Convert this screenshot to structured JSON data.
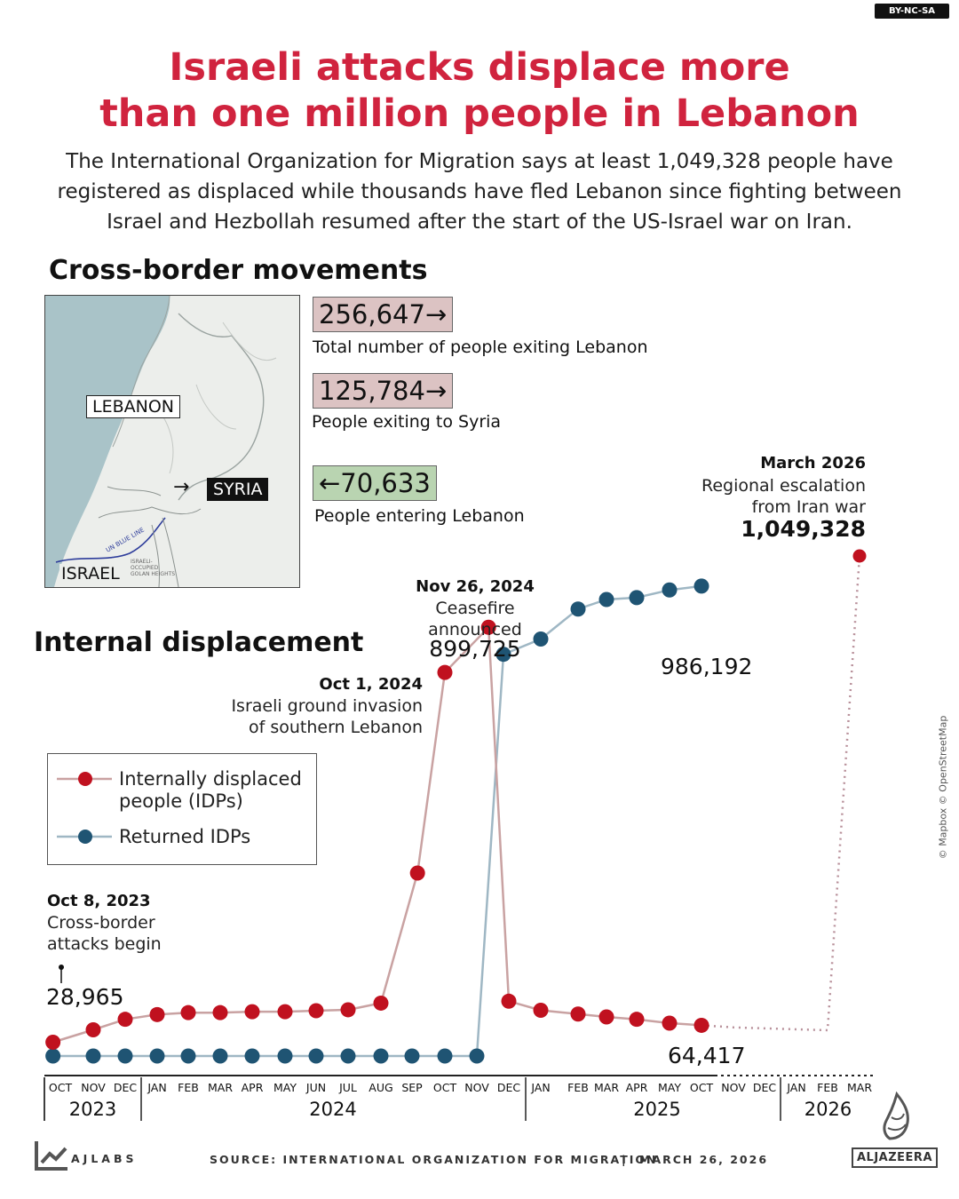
{
  "license": "BY-NC-SA",
  "title_line1": "Israeli attacks displace more",
  "title_line2": "than one million people in Lebanon",
  "subtitle_line1": "The International Organization for Migration says at least 1,049,328 people have",
  "subtitle_line2": "registered as displaced while thousands have fled Lebanon since fighting between",
  "subtitle_line3": "Israel and Hezbollah resumed after the start of the US-Israel war on Iran.",
  "cross_border": {
    "heading": "Cross-border movements",
    "map_labels": {
      "lebanon": "LEBANON",
      "syria": "SYRIA",
      "israel": "ISRAEL",
      "arrow": "→"
    },
    "stats": [
      {
        "value": "256,647→",
        "label": "Total number of people exiting Lebanon",
        "color": "#dcc3c3"
      },
      {
        "value": "125,784→",
        "label": "People exiting to Syria",
        "color": "#dcc3c3"
      },
      {
        "value": "←70,633",
        "label": "People entering Lebanon",
        "color": "#b9d4b1"
      }
    ]
  },
  "internal": {
    "heading": "Internal displacement"
  },
  "annotations": {
    "oct2023": {
      "date": "Oct 8, 2023",
      "line1": "Cross-border",
      "line2": "attacks begin",
      "value": "28,965"
    },
    "oct2024": {
      "date": "Oct 1, 2024",
      "line1": "Israeli ground invasion",
      "line2": "of southern Lebanon"
    },
    "nov2024": {
      "date": "Nov 26, 2024",
      "line1": "Ceasefire",
      "line2": "announced",
      "value": "899,725"
    },
    "mar2026": {
      "date": "March 2026",
      "line1": "Regional escalation",
      "line2": "from Iran war",
      "value": "1,049,328"
    },
    "returned_last": "986,192",
    "idp_last": "64,417"
  },
  "legend": {
    "idp_line1": "Internally displaced",
    "idp_line2": "people (IDPs)",
    "returned": "Returned IDPs"
  },
  "credit": "© Mapbox © OpenStreetMap",
  "footer": {
    "brand": "AJLABS",
    "source": "SOURCE: INTERNATIONAL ORGANIZATION FOR MIGRATION",
    "separator": "|",
    "date": "MARCH 26, 2026",
    "logo": "ALJAZEERA"
  },
  "colors": {
    "idp": "#c0111f",
    "idp_line": "#c9a2a2",
    "returned": "#1f5473",
    "returned_line": "#9fb7c4",
    "title": "#d0233e"
  },
  "chart_data": {
    "type": "line",
    "x_months": [
      "OCT",
      "NOV",
      "DEC",
      "JAN",
      "FEB",
      "MAR",
      "APR",
      "MAY",
      "JUN",
      "JUL",
      "AUG",
      "SEP",
      "OCT",
      "NOV",
      "DEC",
      "JAN",
      "FEB",
      "MAR",
      "APR",
      "MAY",
      "OCT",
      "NOV",
      "DEC",
      "JAN",
      "FEB",
      "MAR"
    ],
    "x_years": [
      {
        "label": "2023",
        "from": 0,
        "to": 2
      },
      {
        "label": "2024",
        "from": 3,
        "to": 14
      },
      {
        "label": "2025",
        "from": 15,
        "to": 22
      },
      {
        "label": "2026",
        "from": 23,
        "to": 25
      }
    ],
    "series": [
      {
        "name": "Internally displaced people (IDPs)",
        "points": [
          [
            "2023-10-08",
            28965
          ],
          [
            "2023-11-15",
            55000
          ],
          [
            "2023-12-15",
            77000
          ],
          [
            "2024-01-15",
            87000
          ],
          [
            "2024-02-15",
            91000
          ],
          [
            "2024-03-15",
            91000
          ],
          [
            "2024-04-15",
            93000
          ],
          [
            "2024-05-15",
            93000
          ],
          [
            "2024-06-15",
            95000
          ],
          [
            "2024-07-15",
            97000
          ],
          [
            "2024-08-15",
            111000
          ],
          [
            "2024-09-20",
            384000
          ],
          [
            "2024-10-15",
            805000
          ],
          [
            "2024-11-26",
            899725
          ],
          [
            "2024-12-15",
            115000
          ],
          [
            "2025-01-15",
            96000
          ],
          [
            "2025-02-15",
            88000
          ],
          [
            "2025-03-15",
            82000
          ],
          [
            "2025-04-15",
            77000
          ],
          [
            "2025-05-15",
            69000
          ],
          [
            "2025-10-15",
            64417
          ]
        ],
        "projection": [
          [
            "2025-11-15",
            60000
          ],
          [
            "2026-02-15",
            54000
          ],
          [
            "2026-03-15",
            1049328
          ]
        ]
      },
      {
        "name": "Returned IDPs",
        "points": [
          [
            "2023-10-08",
            0
          ],
          [
            "2023-11-15",
            0
          ],
          [
            "2023-12-15",
            0
          ],
          [
            "2024-01-15",
            0
          ],
          [
            "2024-02-15",
            0
          ],
          [
            "2024-03-15",
            0
          ],
          [
            "2024-04-15",
            0
          ],
          [
            "2024-05-15",
            0
          ],
          [
            "2024-06-15",
            0
          ],
          [
            "2024-07-15",
            0
          ],
          [
            "2024-08-15",
            0
          ],
          [
            "2024-09-15",
            0
          ],
          [
            "2024-10-15",
            0
          ],
          [
            "2024-11-15",
            0
          ],
          [
            "2024-12-10",
            843000
          ],
          [
            "2025-01-15",
            875000
          ],
          [
            "2025-02-15",
            938000
          ],
          [
            "2025-03-15",
            958000
          ],
          [
            "2025-04-15",
            962000
          ],
          [
            "2025-05-15",
            978000
          ],
          [
            "2025-10-15",
            986192
          ]
        ]
      }
    ],
    "ylim": [
      0,
      1100000
    ]
  }
}
